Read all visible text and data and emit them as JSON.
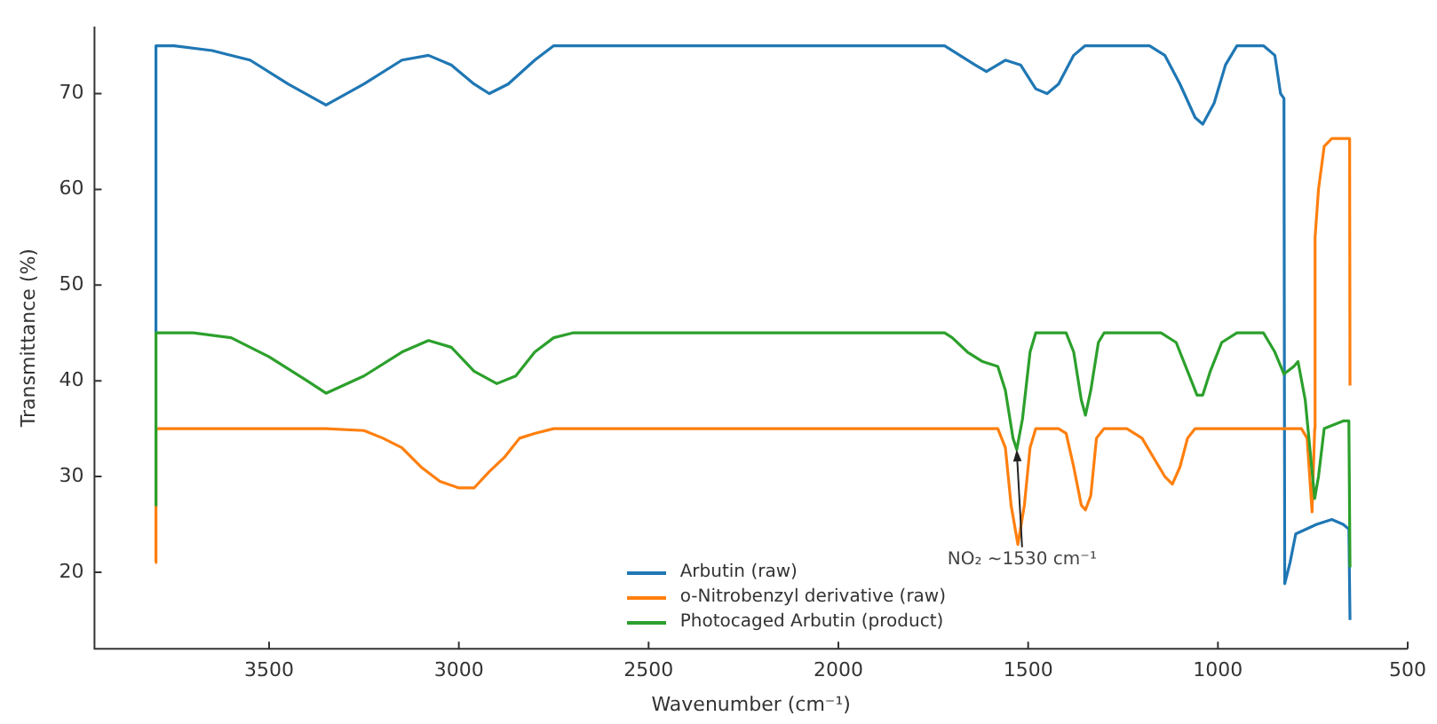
{
  "chart_data": {
    "type": "line",
    "xlabel": "Wavenumber (cm⁻¹)",
    "ylabel": "Transmittance (%)",
    "xlim": [
      3960,
      500
    ],
    "xticks": [
      3500,
      3000,
      2500,
      2000,
      1500,
      1000,
      500
    ],
    "ylim": [
      12,
      77
    ],
    "yticks": [
      20,
      30,
      40,
      50,
      60,
      70
    ],
    "grid": false,
    "legend": "bottom",
    "marker": "none",
    "line_style": "solid",
    "annotations": [
      {
        "text": "NO₂ ~1530 cm⁻¹",
        "x": 1530,
        "y": 32.8
      }
    ],
    "series": [
      {
        "name": "Arbutin (raw)",
        "color": "#1f77b4",
        "x": [
          3800,
          3798,
          3750,
          3650,
          3550,
          3450,
          3350,
          3250,
          3150,
          3080,
          3020,
          2960,
          2920,
          2870,
          2800,
          2750,
          2600,
          2400,
          2200,
          2000,
          1800,
          1720,
          1680,
          1640,
          1610,
          1560,
          1520,
          1480,
          1450,
          1420,
          1380,
          1350,
          1250,
          1180,
          1140,
          1100,
          1060,
          1040,
          1010,
          980,
          950,
          880,
          850,
          835,
          826,
          824,
          810,
          795,
          740,
          700,
          670,
          655,
          652
        ],
        "values": [
          45,
          75,
          75,
          74.5,
          73.5,
          71,
          68.8,
          71,
          73.5,
          74,
          73,
          71,
          70,
          71,
          73.5,
          75,
          75,
          75,
          75,
          75,
          75,
          75,
          74,
          73,
          72.3,
          73.5,
          73,
          70.5,
          70,
          71,
          74,
          75,
          75,
          75,
          74,
          71,
          67.5,
          66.8,
          69,
          73,
          75,
          75,
          74,
          70,
          69.5,
          18.8,
          21,
          24,
          25,
          25.5,
          25,
          24.5,
          15
        ]
      },
      {
        "name": "o-Nitrobenzyl derivative (raw)",
        "color": "#ff7f0e",
        "x": [
          3800,
          3798,
          3700,
          3500,
          3350,
          3250,
          3200,
          3150,
          3100,
          3050,
          3000,
          2960,
          2920,
          2880,
          2840,
          2800,
          2750,
          2500,
          2200,
          2000,
          1800,
          1580,
          1560,
          1545,
          1527,
          1510,
          1495,
          1480,
          1420,
          1400,
          1380,
          1360,
          1349,
          1335,
          1320,
          1300,
          1240,
          1200,
          1170,
          1140,
          1120,
          1100,
          1080,
          1060,
          900,
          780,
          765,
          752,
          745,
          744,
          735,
          720,
          700,
          660,
          653,
          652
        ],
        "values": [
          21,
          35,
          35,
          35,
          35,
          34.8,
          34,
          33,
          31,
          29.5,
          28.8,
          28.8,
          30.5,
          32,
          34,
          34.5,
          35,
          35,
          35,
          35,
          35,
          35,
          33,
          27,
          22.9,
          27,
          33,
          35,
          35,
          34.5,
          31,
          27,
          26.5,
          28,
          34,
          35,
          35,
          34,
          32,
          30,
          29.2,
          31,
          34,
          35,
          35,
          35,
          34,
          26.3,
          35,
          55,
          60,
          64.5,
          65.3,
          65.3,
          65.3,
          39.5
        ]
      },
      {
        "name": "Photocaged Arbutin (product)",
        "color": "#2ca02c",
        "x": [
          3800,
          3798,
          3700,
          3600,
          3500,
          3400,
          3350,
          3250,
          3150,
          3080,
          3020,
          2960,
          2900,
          2850,
          2800,
          2750,
          2700,
          2600,
          2400,
          2200,
          2000,
          1800,
          1720,
          1700,
          1660,
          1620,
          1580,
          1560,
          1540,
          1530,
          1515,
          1495,
          1480,
          1400,
          1380,
          1360,
          1349,
          1335,
          1315,
          1300,
          1150,
          1110,
          1080,
          1055,
          1040,
          1020,
          990,
          950,
          880,
          850,
          826,
          800,
          789,
          770,
          745,
          735,
          720,
          670,
          655,
          652
        ],
        "values": [
          27,
          45,
          45,
          44.5,
          42.5,
          40,
          38.7,
          40.5,
          43,
          44.2,
          43.5,
          41,
          39.7,
          40.5,
          43,
          44.5,
          45,
          45,
          45,
          45,
          45,
          45,
          45,
          44.5,
          43,
          42,
          41.5,
          39,
          34,
          32.8,
          36,
          43,
          45,
          45,
          43,
          38,
          36.4,
          39,
          44,
          45,
          45,
          44,
          41,
          38.5,
          38.5,
          41,
          44,
          45,
          45,
          43,
          40.7,
          41.5,
          42,
          38,
          27.7,
          30,
          35,
          35.8,
          35.8,
          20.5
        ]
      }
    ]
  }
}
